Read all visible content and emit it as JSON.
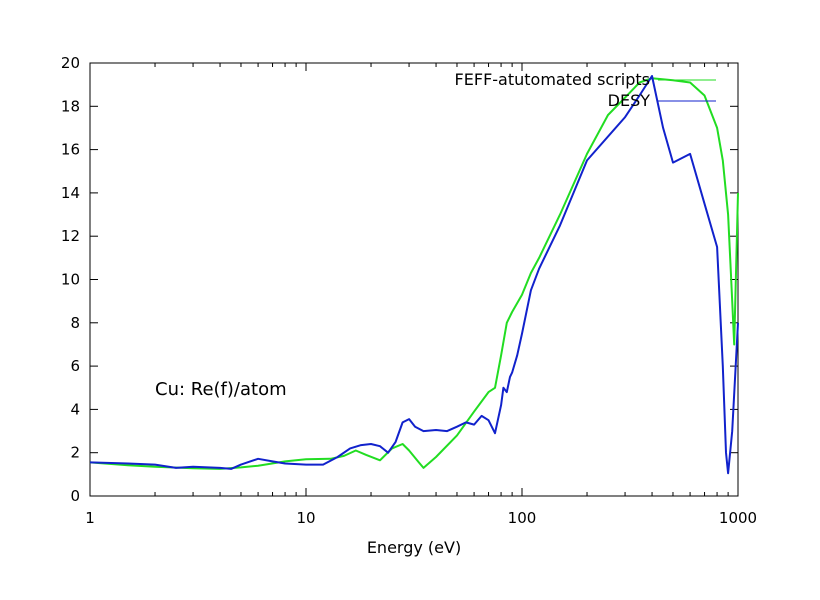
{
  "chart_data": {
    "type": "line",
    "xlabel": "Energy (eV)",
    "ylabel": "",
    "xscale": "log",
    "xlim": [
      1,
      1000
    ],
    "ylim": [
      0,
      20
    ],
    "grid": false,
    "legend_position": "top-right",
    "x_ticks": [
      "1",
      "10",
      "100",
      "1000"
    ],
    "y_ticks": [
      "0",
      "2",
      "4",
      "6",
      "8",
      "10",
      "12",
      "14",
      "16",
      "18",
      "20"
    ],
    "annotation": "Cu: Re(f)/atom",
    "series": [
      {
        "name": "FEFF-atutomated scripts",
        "color": "#22dd22",
        "x": [
          1,
          1.5,
          2,
          3,
          4,
          5,
          6,
          8,
          10,
          13,
          15,
          17,
          19,
          22,
          25,
          28,
          30,
          33,
          35,
          40,
          50,
          60,
          70,
          75,
          80,
          85,
          90,
          100,
          110,
          120,
          150,
          200,
          250,
          300,
          350,
          400,
          500,
          600,
          700,
          800,
          850,
          900,
          930,
          960,
          1000
        ],
        "y": [
          1.55,
          1.42,
          1.35,
          1.28,
          1.25,
          1.32,
          1.4,
          1.6,
          1.7,
          1.72,
          1.85,
          2.1,
          1.9,
          1.65,
          2.2,
          2.4,
          2.1,
          1.6,
          1.3,
          1.8,
          2.8,
          3.9,
          4.8,
          5.0,
          6.5,
          8.0,
          8.5,
          9.3,
          10.3,
          11.0,
          13.0,
          15.8,
          17.6,
          18.4,
          19.1,
          19.3,
          19.2,
          19.1,
          18.5,
          17.0,
          15.5,
          13.0,
          10.0,
          7.0,
          14.0
        ]
      },
      {
        "name": "DESY",
        "color": "#1122cc",
        "x": [
          1,
          1.5,
          2,
          2.5,
          3,
          4,
          4.5,
          5,
          6,
          7,
          8,
          10,
          12,
          14,
          16,
          18,
          20,
          22,
          24,
          26,
          28,
          30,
          32,
          35,
          40,
          45,
          50,
          55,
          60,
          65,
          70,
          75,
          80,
          82,
          85,
          88,
          90,
          95,
          100,
          110,
          120,
          150,
          200,
          300,
          350,
          400,
          450,
          500,
          600,
          700,
          800,
          850,
          880,
          900,
          940,
          1000
        ],
        "y": [
          1.55,
          1.5,
          1.45,
          1.3,
          1.35,
          1.3,
          1.25,
          1.45,
          1.72,
          1.6,
          1.5,
          1.45,
          1.45,
          1.8,
          2.2,
          2.35,
          2.4,
          2.3,
          2.0,
          2.5,
          3.4,
          3.55,
          3.2,
          3.0,
          3.05,
          3.0,
          3.2,
          3.4,
          3.3,
          3.7,
          3.5,
          2.9,
          4.2,
          5.0,
          4.8,
          5.5,
          5.7,
          6.5,
          7.5,
          9.5,
          10.5,
          12.5,
          15.5,
          17.5,
          18.5,
          19.4,
          17.0,
          15.4,
          15.8,
          13.5,
          11.5,
          6.0,
          2.0,
          1.05,
          3.0,
          8.0
        ]
      }
    ]
  }
}
